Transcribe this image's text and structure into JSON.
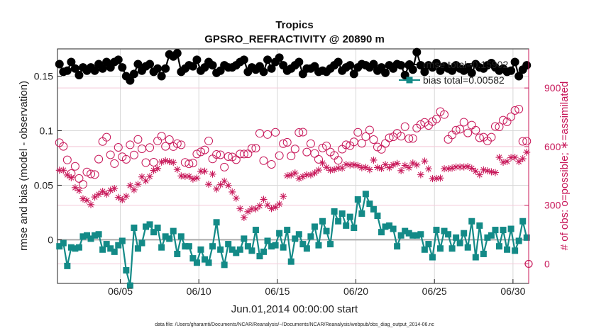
{
  "chart_data": {
    "type": "line",
    "title": "Tropics",
    "subtitle": "GPSRO_REFRACTIVITY @ 20890 m",
    "xlabel": "Jun.01,2014 00:00:00 start",
    "ylabel": "rmse and bias (model - observation)",
    "ylabel_right": "# of obs: o=possible; ∗=assimilated",
    "footnote": "data file: /Users/gharamti/Documents/NCAR/Reanalysis/~/Documents/NCAR/Reanalysis/webpub/obs_diag_output_2014-06.nc",
    "xlim": [
      1.0,
      31.0
    ],
    "ylim": [
      -0.04,
      0.175
    ],
    "ylim_right": [
      -100,
      1100
    ],
    "x_ticks": [
      5,
      10,
      15,
      20,
      25,
      30
    ],
    "x_tick_labels": [
      "06/05",
      "06/10",
      "06/15",
      "06/20",
      "06/25",
      "06/30"
    ],
    "y_ticks": [
      0,
      0.05,
      0.1,
      0.15
    ],
    "y_tick_labels": [
      "0",
      "0.05",
      "0.1",
      "0.15"
    ],
    "y_right_ticks": [
      0,
      300,
      600,
      900
    ],
    "y_right_tick_labels": [
      "0",
      "300",
      "600",
      "900"
    ],
    "grid": true,
    "legend_entries": [
      "rmse    total=0.15902",
      "bias    total=0.00582"
    ],
    "colors": {
      "rmse": "#000000",
      "bias": "#138a87",
      "obs": "#c8185a",
      "zero": "#aaaaaa"
    },
    "x": [
      1.125,
      1.375,
      1.625,
      1.875,
      2.125,
      2.375,
      2.625,
      2.875,
      3.125,
      3.375,
      3.625,
      3.875,
      4.125,
      4.375,
      4.625,
      4.875,
      5.125,
      5.375,
      5.625,
      5.875,
      6.125,
      6.375,
      6.625,
      6.875,
      7.125,
      7.375,
      7.625,
      7.875,
      8.125,
      8.375,
      8.625,
      8.875,
      9.125,
      9.375,
      9.625,
      9.875,
      10.125,
      10.375,
      10.625,
      10.875,
      11.125,
      11.375,
      11.625,
      11.875,
      12.125,
      12.375,
      12.625,
      12.875,
      13.125,
      13.375,
      13.625,
      13.875,
      14.125,
      14.375,
      14.625,
      14.875,
      15.125,
      15.375,
      15.625,
      15.875,
      16.125,
      16.375,
      16.625,
      16.875,
      17.125,
      17.375,
      17.625,
      17.875,
      18.125,
      18.375,
      18.625,
      18.875,
      19.125,
      19.375,
      19.625,
      19.875,
      20.125,
      20.375,
      20.625,
      20.875,
      21.125,
      21.375,
      21.625,
      21.875,
      22.125,
      22.375,
      22.625,
      22.875,
      23.125,
      23.375,
      23.625,
      23.875,
      24.125,
      24.375,
      24.625,
      24.875,
      25.125,
      25.375,
      25.625,
      25.875,
      26.125,
      26.375,
      26.625,
      26.875,
      27.125,
      27.375,
      27.625,
      27.875,
      28.125,
      28.375,
      28.625,
      28.875,
      29.125,
      29.375,
      29.625,
      29.875,
      30.125,
      30.375,
      30.625,
      30.875
    ],
    "series": [
      {
        "name": "rmse",
        "axis": "left",
        "marker": "filled-circle",
        "values": [
          0.161,
          0.154,
          0.155,
          0.163,
          0.157,
          0.151,
          0.158,
          0.155,
          0.158,
          0.155,
          0.161,
          0.157,
          0.163,
          0.158,
          0.163,
          0.165,
          0.158,
          0.15,
          0.146,
          0.152,
          0.161,
          0.155,
          0.159,
          0.161,
          0.154,
          0.157,
          0.15,
          0.157,
          0.17,
          0.168,
          0.171,
          0.154,
          0.157,
          0.16,
          0.159,
          0.165,
          0.155,
          0.158,
          0.163,
          0.16,
          0.153,
          0.155,
          0.16,
          0.158,
          0.158,
          0.16,
          0.163,
          0.165,
          0.154,
          0.158,
          0.156,
          0.159,
          0.154,
          0.165,
          0.157,
          0.163,
          0.167,
          0.16,
          0.155,
          0.157,
          0.16,
          0.163,
          0.152,
          0.157,
          0.157,
          0.159,
          0.154,
          0.155,
          0.154,
          0.157,
          0.16,
          0.163,
          0.155,
          0.158,
          0.16,
          0.152,
          0.158,
          0.161,
          0.16,
          0.158,
          0.161,
          0.155,
          0.158,
          0.153,
          0.16,
          0.157,
          0.161,
          0.16,
          0.151,
          0.16,
          0.156,
          0.172,
          0.16,
          0.154,
          0.16,
          0.158,
          0.162,
          0.155,
          0.159,
          0.157,
          0.155,
          0.16,
          0.157,
          0.155,
          0.158,
          0.153,
          0.161,
          0.158,
          0.157,
          0.16,
          0.162,
          0.158,
          0.155,
          0.157,
          0.154,
          0.155,
          0.163,
          0.15,
          0.156,
          0.16
        ]
      },
      {
        "name": "bias",
        "axis": "left",
        "marker": "filled-square",
        "values": [
          -0.006,
          -0.003,
          -0.024,
          -0.007,
          -0.008,
          -0.007,
          0.003,
          0.004,
          0.001,
          0.004,
          0.005,
          -0.009,
          -0.004,
          -0.008,
          -0.011,
          -0.005,
          -0.001,
          -0.028,
          -0.042,
          0.011,
          -0.008,
          -0.003,
          0.012,
          0.014,
          0.007,
          0.011,
          -0.007,
          0.003,
          0.001,
          0.008,
          -0.013,
          0.003,
          -0.006,
          -0.006,
          -0.017,
          -0.021,
          -0.009,
          -0.018,
          -0.021,
          -0.006,
          0.016,
          -0.009,
          -0.023,
          -0.004,
          -0.009,
          -0.012,
          -0.009,
          0.001,
          -0.006,
          -0.01,
          0.009,
          -0.015,
          -0.011,
          -0.001,
          -0.006,
          -0.005,
          0.006,
          -0.007,
          0.009,
          -0.02,
          0.001,
          0.005,
          -0.004,
          -0.008,
          0.003,
          0.012,
          -0.005,
          0.017,
          0.008,
          -0.004,
          0.026,
          0.017,
          0.024,
          0.013,
          0.021,
          0.011,
          0.037,
          0.024,
          0.042,
          0.033,
          0.028,
          0.022,
          0.007,
          0.012,
          0.013,
          0.01,
          -0.006,
          0.004,
          0.008,
          0.006,
          0.004,
          0.004,
          0.005,
          -0.009,
          -0.004,
          -0.016,
          0.009,
          -0.008,
          0.008,
          0.005,
          -0.008,
          0.002,
          -0.003,
          0.006,
          -0.007,
          0.017,
          -0.016,
          0.013,
          -0.013,
          0.002,
          0.004,
          0.009,
          -0.006,
          0.009,
          -0.009,
          0.01,
          -0.01,
          -0.001,
          0.017,
          0.002
        ]
      },
      {
        "name": "possible",
        "axis": "right",
        "marker": "open-circle",
        "values": [
          620,
          601,
          532,
          462,
          499,
          437,
          407,
          470,
          460,
          457,
          536,
          626,
          648,
          558,
          513,
          596,
          548,
          535,
          609,
          557,
          637,
          589,
          518,
          595,
          520,
          629,
          653,
          601,
          636,
          600,
          615,
          609,
          519,
          512,
          516,
          562,
          573,
          583,
          629,
          537,
          560,
          558,
          495,
          549,
          547,
          533,
          562,
          562,
          563,
          591,
          592,
          668,
          528,
          662,
          509,
          673,
          554,
          615,
          622,
          552,
          588,
          672,
          674,
          572,
          615,
          565,
          535,
          593,
          604,
          572,
          555,
          530,
          587,
          609,
          605,
          624,
          673,
          617,
          651,
          685,
          636,
          598,
          586,
          616,
          645,
          650,
          668,
          653,
          702,
          641,
          642,
          695,
          713,
          724,
          708,
          728,
          741,
          779,
          764,
          637,
          660,
          684,
          689,
          725,
          670,
          710,
          684,
          645,
          648,
          629,
          648,
          703,
          701,
          735,
          727,
          753,
          785,
          792,
          627,
          628
        ]
      },
      {
        "name": "assimilated",
        "axis": "right",
        "marker": "asterisk",
        "values": [
          479,
          479,
          455,
          441,
          390,
          375,
          333,
          325,
          303,
          342,
          356,
          371,
          357,
          377,
          386,
          340,
          328,
          346,
          401,
          379,
          407,
          445,
          425,
          447,
          478,
          488,
          521,
          528,
          523,
          519,
          483,
          450,
          448,
          448,
          434,
          439,
          474,
          474,
          407,
          459,
          383,
          405,
          423,
          401,
          368,
          336,
          282,
          237,
          267,
          281,
          281,
          297,
          330,
          301,
          283,
          290,
          306,
          345,
          451,
          455,
          465,
          437,
          446,
          456,
          455,
          465,
          480,
          516,
          494,
          479,
          483,
          490,
          490,
          509,
          506,
          507,
          503,
          492,
          494,
          482,
          531,
          493,
          488,
          508,
          492,
          507,
          514,
          477,
          504,
          492,
          516,
          506,
          456,
          526,
          486,
          436,
          437,
          439,
          487,
          487,
          490,
          496,
          496,
          496,
          498,
          489,
          474,
          456,
          481,
          476,
          471,
          467,
          545,
          520,
          524,
          544,
          545,
          523,
          538,
          571
        ]
      }
    ]
  }
}
